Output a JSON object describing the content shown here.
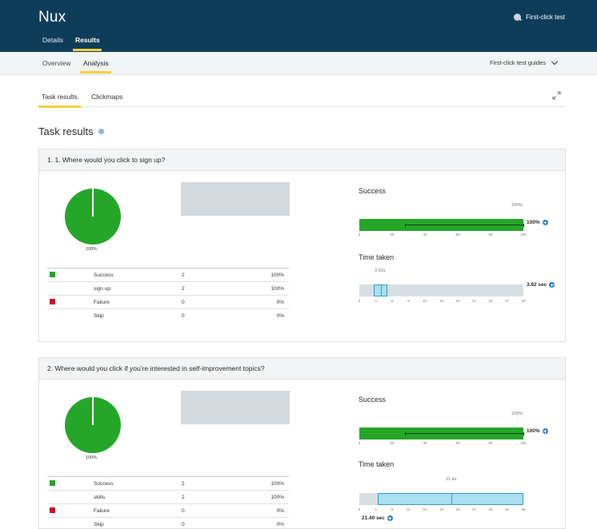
{
  "app": {
    "title": "Nux",
    "test_type": "First-click test",
    "top_tabs": [
      {
        "label": "Details"
      },
      {
        "label": "Results"
      }
    ],
    "sub_tabs": [
      {
        "label": "Overview"
      },
      {
        "label": "Analysis"
      }
    ],
    "guides_label": "First-click test guides",
    "result_tabs": [
      {
        "label": "Task results"
      },
      {
        "label": "Clickmaps"
      }
    ],
    "section_title": "Task results"
  },
  "colors": {
    "header_bg": "#0e3d59",
    "accent": "#f6cf3a",
    "success": "#25a629",
    "failure": "#c8102e",
    "box": "#a9dff0"
  },
  "tasks": [
    {
      "title": "1. 1. Where would you click to sign up?",
      "pie_label": "100%",
      "rows": [
        {
          "label": "Success",
          "count": "2",
          "pct": "100%",
          "color": "#25a629",
          "swatch": true
        },
        {
          "label": "sign up",
          "count": "2",
          "pct": "100%",
          "swatch": false,
          "sub": true
        },
        {
          "label": "Failure",
          "count": "0",
          "pct": "0%",
          "color": "#c8102e",
          "swatch": true
        },
        {
          "label": "Skip",
          "count": "0",
          "pct": "0%",
          "swatch": false
        }
      ],
      "success": {
        "title": "Success",
        "top_label": "100%",
        "value_label": "100%",
        "value": 100,
        "axis_ticks": [
          "0",
          "20",
          "40",
          "60",
          "80",
          "100"
        ],
        "range_low": 28,
        "range_high": 100
      },
      "time": {
        "title": "Time taken",
        "top_label": "3.92s",
        "value_label": "3.92 sec",
        "axis_ticks": [
          "0",
          "3",
          "6",
          "9",
          "12",
          "15",
          "18",
          "21",
          "24",
          "27",
          "30"
        ],
        "max": 30,
        "box_low": 2.6,
        "box_high": 5.1,
        "median": 3.92
      }
    },
    {
      "title": "2. Where would you click if you’re interested in self-improvement topics?",
      "pie_label": "100%",
      "rows": [
        {
          "label": "Success",
          "count": "2",
          "pct": "100%",
          "color": "#25a629",
          "swatch": true
        },
        {
          "label": "skills",
          "count": "2",
          "pct": "100%",
          "swatch": false,
          "sub": true
        },
        {
          "label": "Failure",
          "count": "0",
          "pct": "0%",
          "color": "#c8102e",
          "swatch": true
        },
        {
          "label": "Skip",
          "count": "0",
          "pct": "0%",
          "swatch": false
        }
      ],
      "success": {
        "title": "Success",
        "top_label": "100%",
        "value_label": "100%",
        "value": 100,
        "axis_ticks": [
          "0",
          "20",
          "40",
          "60",
          "80",
          "100"
        ],
        "range_low": 28,
        "range_high": 100
      },
      "time": {
        "title": "Time taken",
        "top_label": "21.4s",
        "value_label": "21.40 sec",
        "axis_ticks": [
          "0",
          "4",
          "8",
          "11",
          "15",
          "19",
          "23",
          "27",
          "30",
          "34",
          "38"
        ],
        "max": 38,
        "box_low": 4.2,
        "box_high": 38,
        "median": 21.4
      }
    }
  ]
}
